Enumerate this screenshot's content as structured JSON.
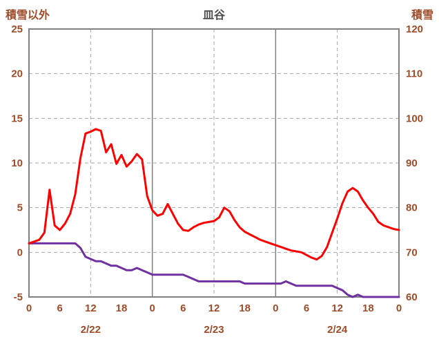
{
  "colors": {
    "temperature_line": "#FF0000",
    "snow_line": "#7030A0",
    "grid": "#A6A6A6",
    "border": "#808080",
    "tick_label": "#9E4B28",
    "title": "#4D4D4D",
    "background": "#FFFFFF"
  },
  "chart_data": {
    "type": "line",
    "title": "皿谷",
    "legend": "none",
    "grid": true,
    "x_axis": {
      "unit": "hour",
      "range": [
        0,
        72
      ],
      "tick_hours": [
        0,
        6,
        12,
        18,
        24,
        30,
        36,
        42,
        48,
        54,
        60,
        66,
        72
      ],
      "tick_labels": [
        "0",
        "6",
        "12",
        "18",
        "0",
        "6",
        "12",
        "18",
        "0",
        "6",
        "12",
        "18",
        "0"
      ],
      "date_labels": [
        {
          "label": "2/22",
          "hour": 12
        },
        {
          "label": "2/23",
          "hour": 36
        },
        {
          "label": "2/24",
          "hour": 60
        }
      ],
      "vgrid": [
        {
          "hour": 12,
          "style": "dashed"
        },
        {
          "hour": 24,
          "style": "solid"
        },
        {
          "hour": 36,
          "style": "dashed"
        },
        {
          "hour": 48,
          "style": "solid"
        },
        {
          "hour": 60,
          "style": "dashed"
        }
      ]
    },
    "left_axis": {
      "title": "積雪以外",
      "min": -5,
      "max": 25,
      "ticks": [
        25,
        20,
        15,
        10,
        5,
        0,
        -5
      ],
      "grid_values": [
        20,
        15,
        10,
        5,
        0
      ]
    },
    "right_axis": {
      "title": "積雪",
      "min": 60,
      "max": 120,
      "ticks": [
        120,
        110,
        100,
        90,
        80,
        70,
        60
      ]
    },
    "series": [
      {
        "name": "積雪以外",
        "axis": "left",
        "color": "#FF0000",
        "x_step_hours": 1,
        "values": [
          1.0,
          1.2,
          1.4,
          2.2,
          7.0,
          3.0,
          2.5,
          3.2,
          4.3,
          6.5,
          10.5,
          13.3,
          13.5,
          13.8,
          13.6,
          11.2,
          12.1,
          9.9,
          10.9,
          9.6,
          10.2,
          11.0,
          10.4,
          6.3,
          4.7,
          4.1,
          4.3,
          5.4,
          4.3,
          3.2,
          2.5,
          2.4,
          2.8,
          3.1,
          3.3,
          3.4,
          3.5,
          3.9,
          5.0,
          4.6,
          3.6,
          2.8,
          2.3,
          2.0,
          1.7,
          1.4,
          1.2,
          1.0,
          0.8,
          0.6,
          0.4,
          0.2,
          0.1,
          0.0,
          -0.3,
          -0.6,
          -0.8,
          -0.4,
          0.6,
          2.2,
          3.8,
          5.5,
          6.8,
          7.2,
          6.8,
          5.8,
          5.0,
          4.3,
          3.4,
          3.0,
          2.8,
          2.6,
          2.5
        ]
      },
      {
        "name": "積雪",
        "axis": "right",
        "color": "#7030A0",
        "x_step_hours": 1,
        "values": [
          72,
          72,
          72,
          72,
          72,
          72,
          72,
          72,
          72,
          72,
          71,
          69,
          68.5,
          68,
          68,
          67.5,
          67,
          67,
          66.5,
          66,
          66,
          66.5,
          66,
          65.5,
          65,
          65,
          65,
          65,
          65,
          65,
          65,
          64.5,
          64,
          63.5,
          63.5,
          63.5,
          63.5,
          63.5,
          63.5,
          63.5,
          63.5,
          63.5,
          63,
          63,
          63,
          63,
          63,
          63,
          63,
          63,
          63.5,
          63,
          62.5,
          62.5,
          62.5,
          62.5,
          62.5,
          62.5,
          62.5,
          62.5,
          62,
          61.5,
          60.5,
          60,
          60.5,
          60,
          60,
          60,
          60,
          60,
          60,
          60,
          60
        ]
      }
    ]
  }
}
